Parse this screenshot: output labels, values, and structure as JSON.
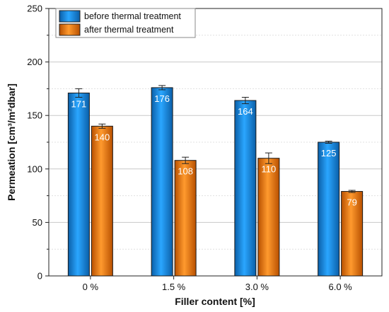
{
  "chart_data": {
    "type": "bar",
    "categories": [
      "0 %",
      "1.5 %",
      "3.0 %",
      "6.0 %"
    ],
    "series": [
      {
        "name": "before thermal treatment",
        "values": [
          171,
          176,
          164,
          125
        ],
        "labels": [
          "171",
          "176",
          "164",
          "125"
        ],
        "errors": [
          4,
          2,
          3,
          1
        ],
        "color": "#1a8fe0"
      },
      {
        "name": "after thermal treatment",
        "values": [
          140,
          108,
          110,
          79
        ],
        "labels": [
          "140",
          "108",
          "110",
          "79"
        ],
        "errors": [
          2,
          3,
          5,
          1
        ],
        "color": "#f07a10"
      }
    ],
    "xlabel": "Filler content [%]",
    "ylabel": "Permeation [cm³/m²dbar]",
    "ylim": [
      0,
      250
    ],
    "yticks": [
      0,
      50,
      100,
      150,
      200,
      250
    ],
    "ytick_labels": [
      "0",
      "50",
      "100",
      "150",
      "200",
      "250"
    ],
    "grid": true,
    "legend": "top-left"
  }
}
